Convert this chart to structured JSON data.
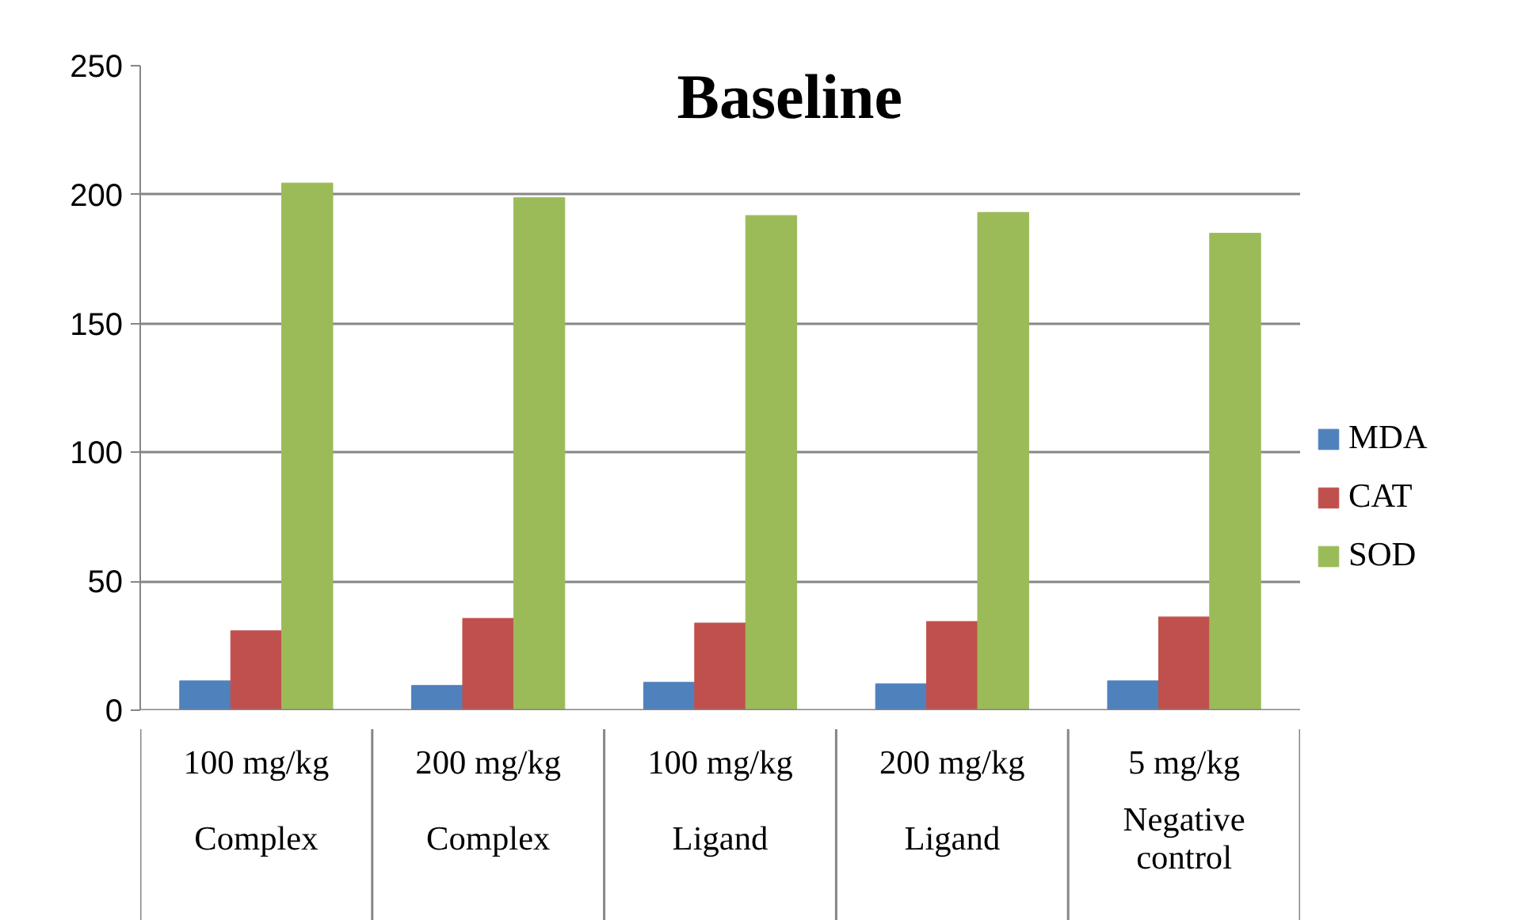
{
  "chart_data": {
    "type": "bar",
    "title": "Baseline",
    "categories": [
      "100 mg/kg\nComplex",
      "200 mg/kg\nComplex",
      "100 mg/kg\nLigand",
      "200 mg/kg\nLigand",
      "5 mg/kg\nNegative\ncontrol"
    ],
    "series": [
      {
        "name": "MDA",
        "color": "#4f81bd",
        "values": [
          11.4,
          9.6,
          10.8,
          10.2,
          11.4
        ]
      },
      {
        "name": "CAT",
        "color": "#c0504d",
        "values": [
          30.8,
          35.6,
          33.8,
          34.4,
          36.2
        ]
      },
      {
        "name": "SOD",
        "color": "#9bbb59",
        "values": [
          204.5,
          198.8,
          191.9,
          193.1,
          185.0
        ]
      }
    ],
    "ylim": [
      0,
      250
    ],
    "yticks": [
      0,
      50,
      100,
      150,
      200,
      250
    ],
    "grid": "y",
    "legend": "right"
  }
}
